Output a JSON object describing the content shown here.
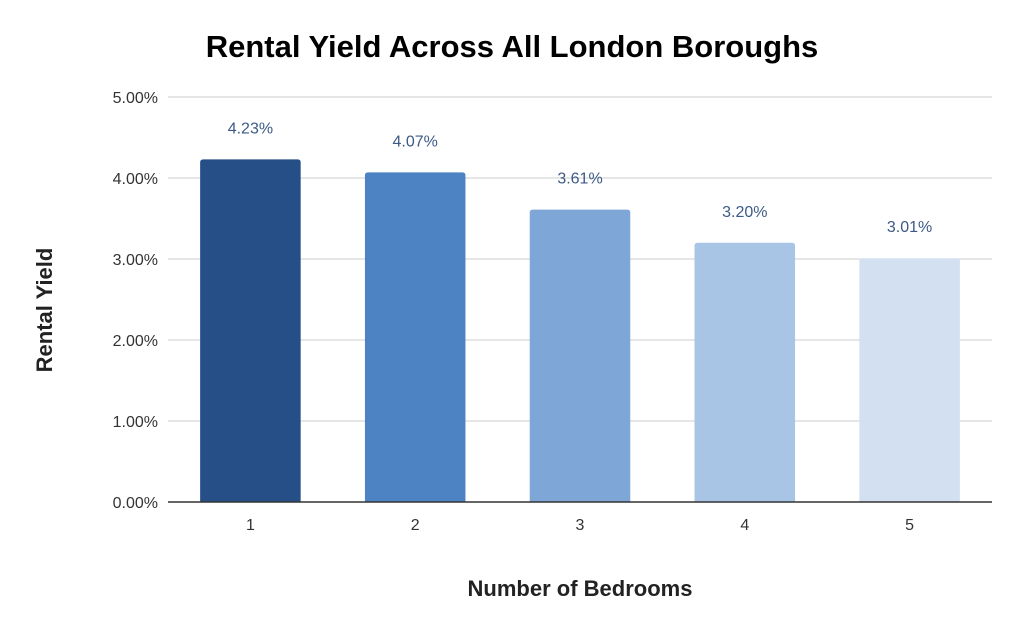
{
  "chart_data": {
    "type": "bar",
    "title": "Rental Yield Across All London Boroughs",
    "xlabel": "Number of Bedrooms",
    "ylabel": "Rental Yield",
    "categories": [
      "1",
      "2",
      "3",
      "4",
      "5"
    ],
    "values": [
      4.23,
      4.07,
      3.61,
      3.2,
      3.01
    ],
    "data_labels": [
      "4.23%",
      "4.07%",
      "3.61%",
      "3.20%",
      "3.01%"
    ],
    "ylim": [
      0,
      5
    ],
    "yticks": [
      0,
      1,
      2,
      3,
      4,
      5
    ],
    "ytick_labels": [
      "0.00%",
      "1.00%",
      "2.00%",
      "3.00%",
      "4.00%",
      "5.00%"
    ],
    "grid": true,
    "legend": "none",
    "colors": [
      "#264f88",
      "#4e83c3",
      "#7ea7d8",
      "#a8c5e5",
      "#d3e0f1"
    ],
    "gridline_color": "#cccccc",
    "axis_color": "#333333",
    "data_label_color": "#3c5a86"
  }
}
